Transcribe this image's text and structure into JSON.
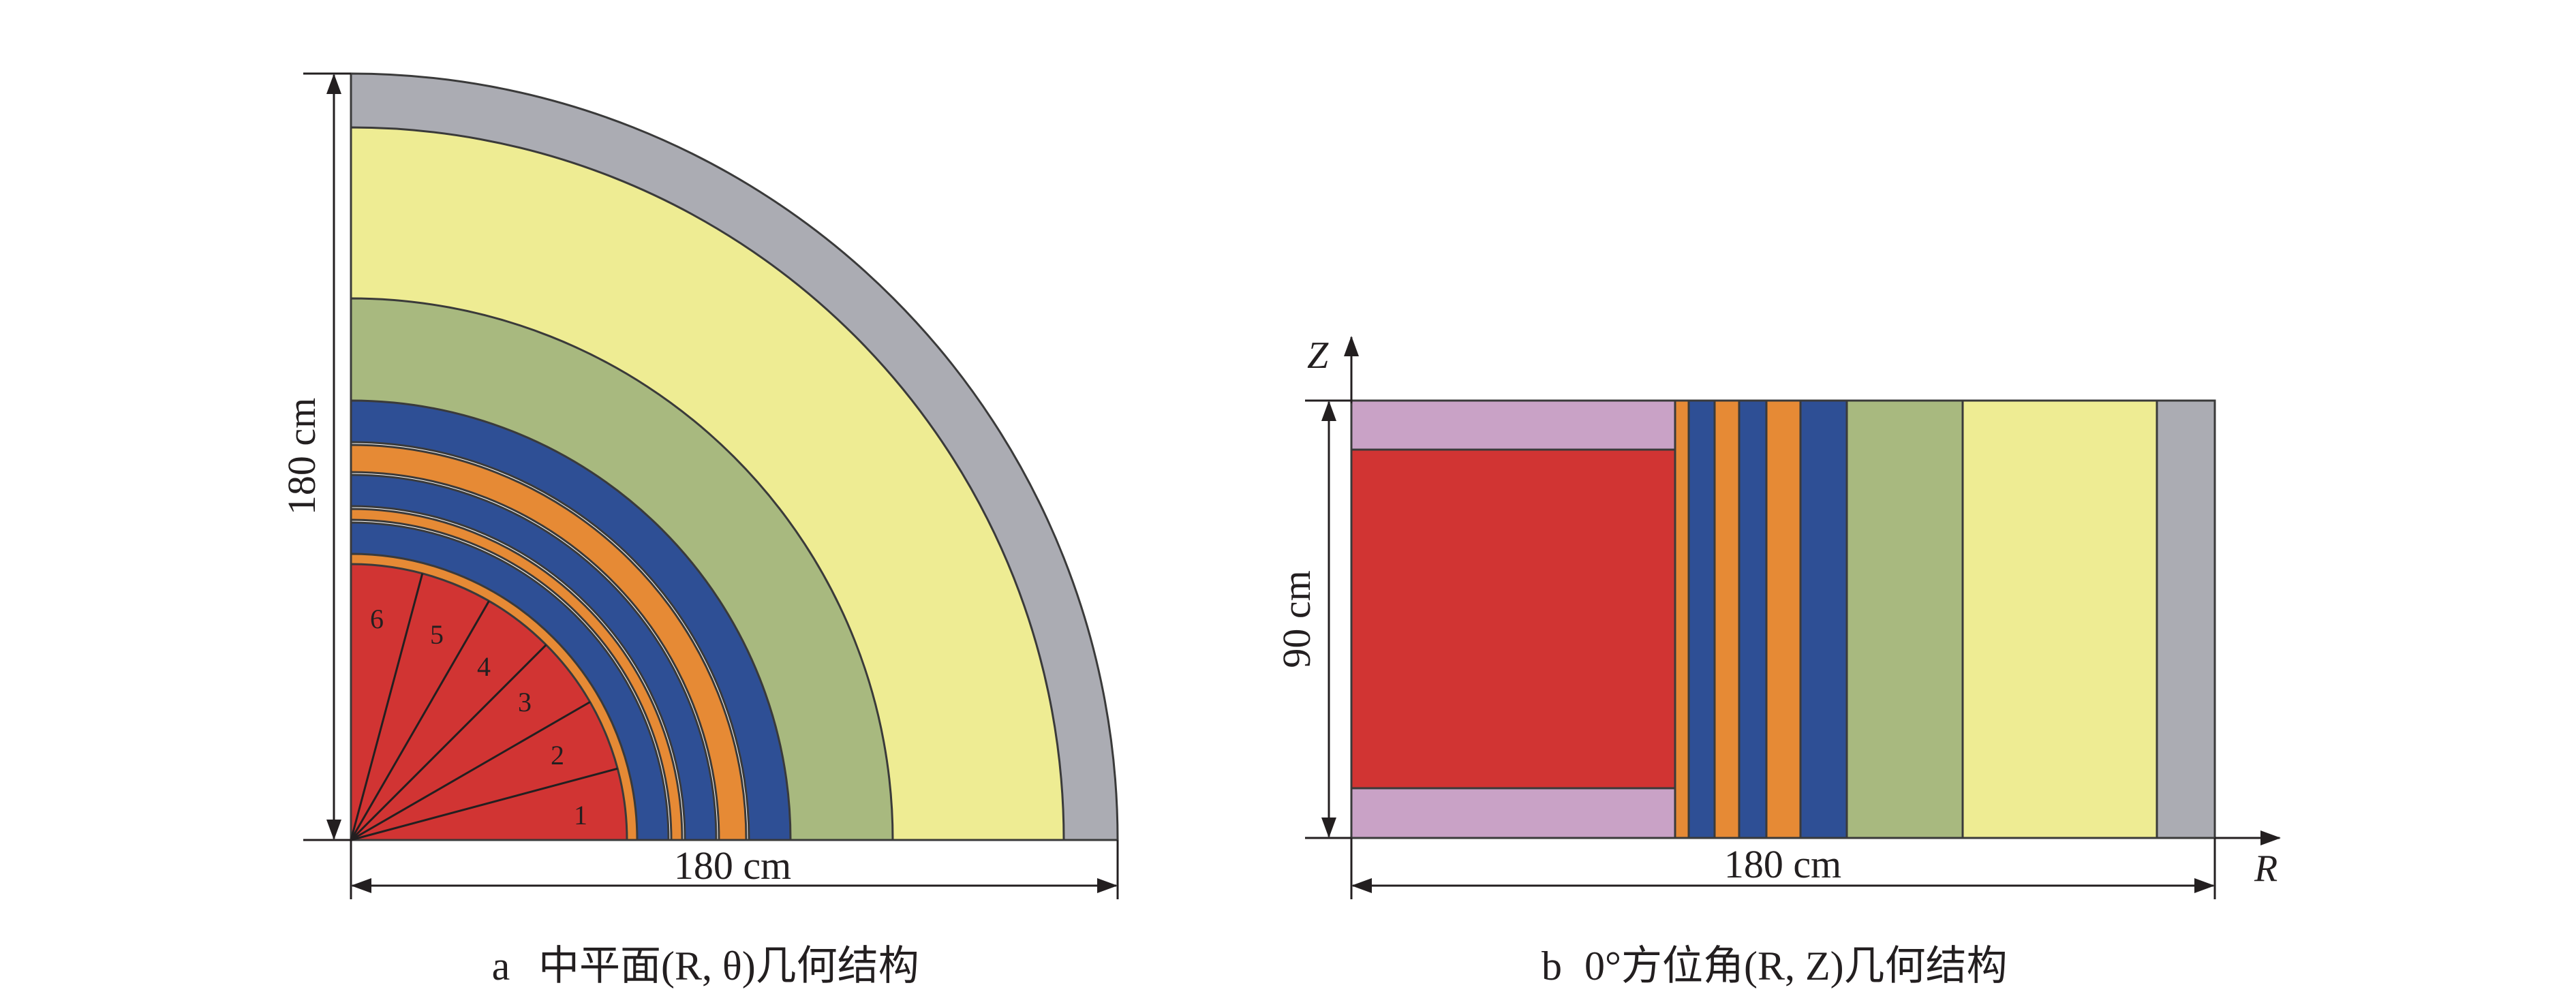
{
  "colors": {
    "fuel": "#d13433",
    "orange_ring": "#e68a35",
    "blue_ring": "#2e4f95",
    "green_ring": "#a8b97f",
    "yellow_ring": "#eeec93",
    "grey_ring": "#abacb3",
    "pink_cap": "#c9a2c6",
    "line": "#231f20"
  },
  "panel_a": {
    "width_dim": "180 cm",
    "height_dim": "180 cm",
    "sector_labels": [
      "1",
      "2",
      "3",
      "4",
      "5",
      "6"
    ],
    "caption_letter": "a",
    "caption_text": "中平面(R, θ)几何结构"
  },
  "panel_b": {
    "width_dim": "180 cm",
    "height_dim": "90 cm",
    "axis_z": "Z",
    "axis_r": "R",
    "caption_letter": "b",
    "caption_text": "0°方位角(R, Z)几何结构"
  }
}
